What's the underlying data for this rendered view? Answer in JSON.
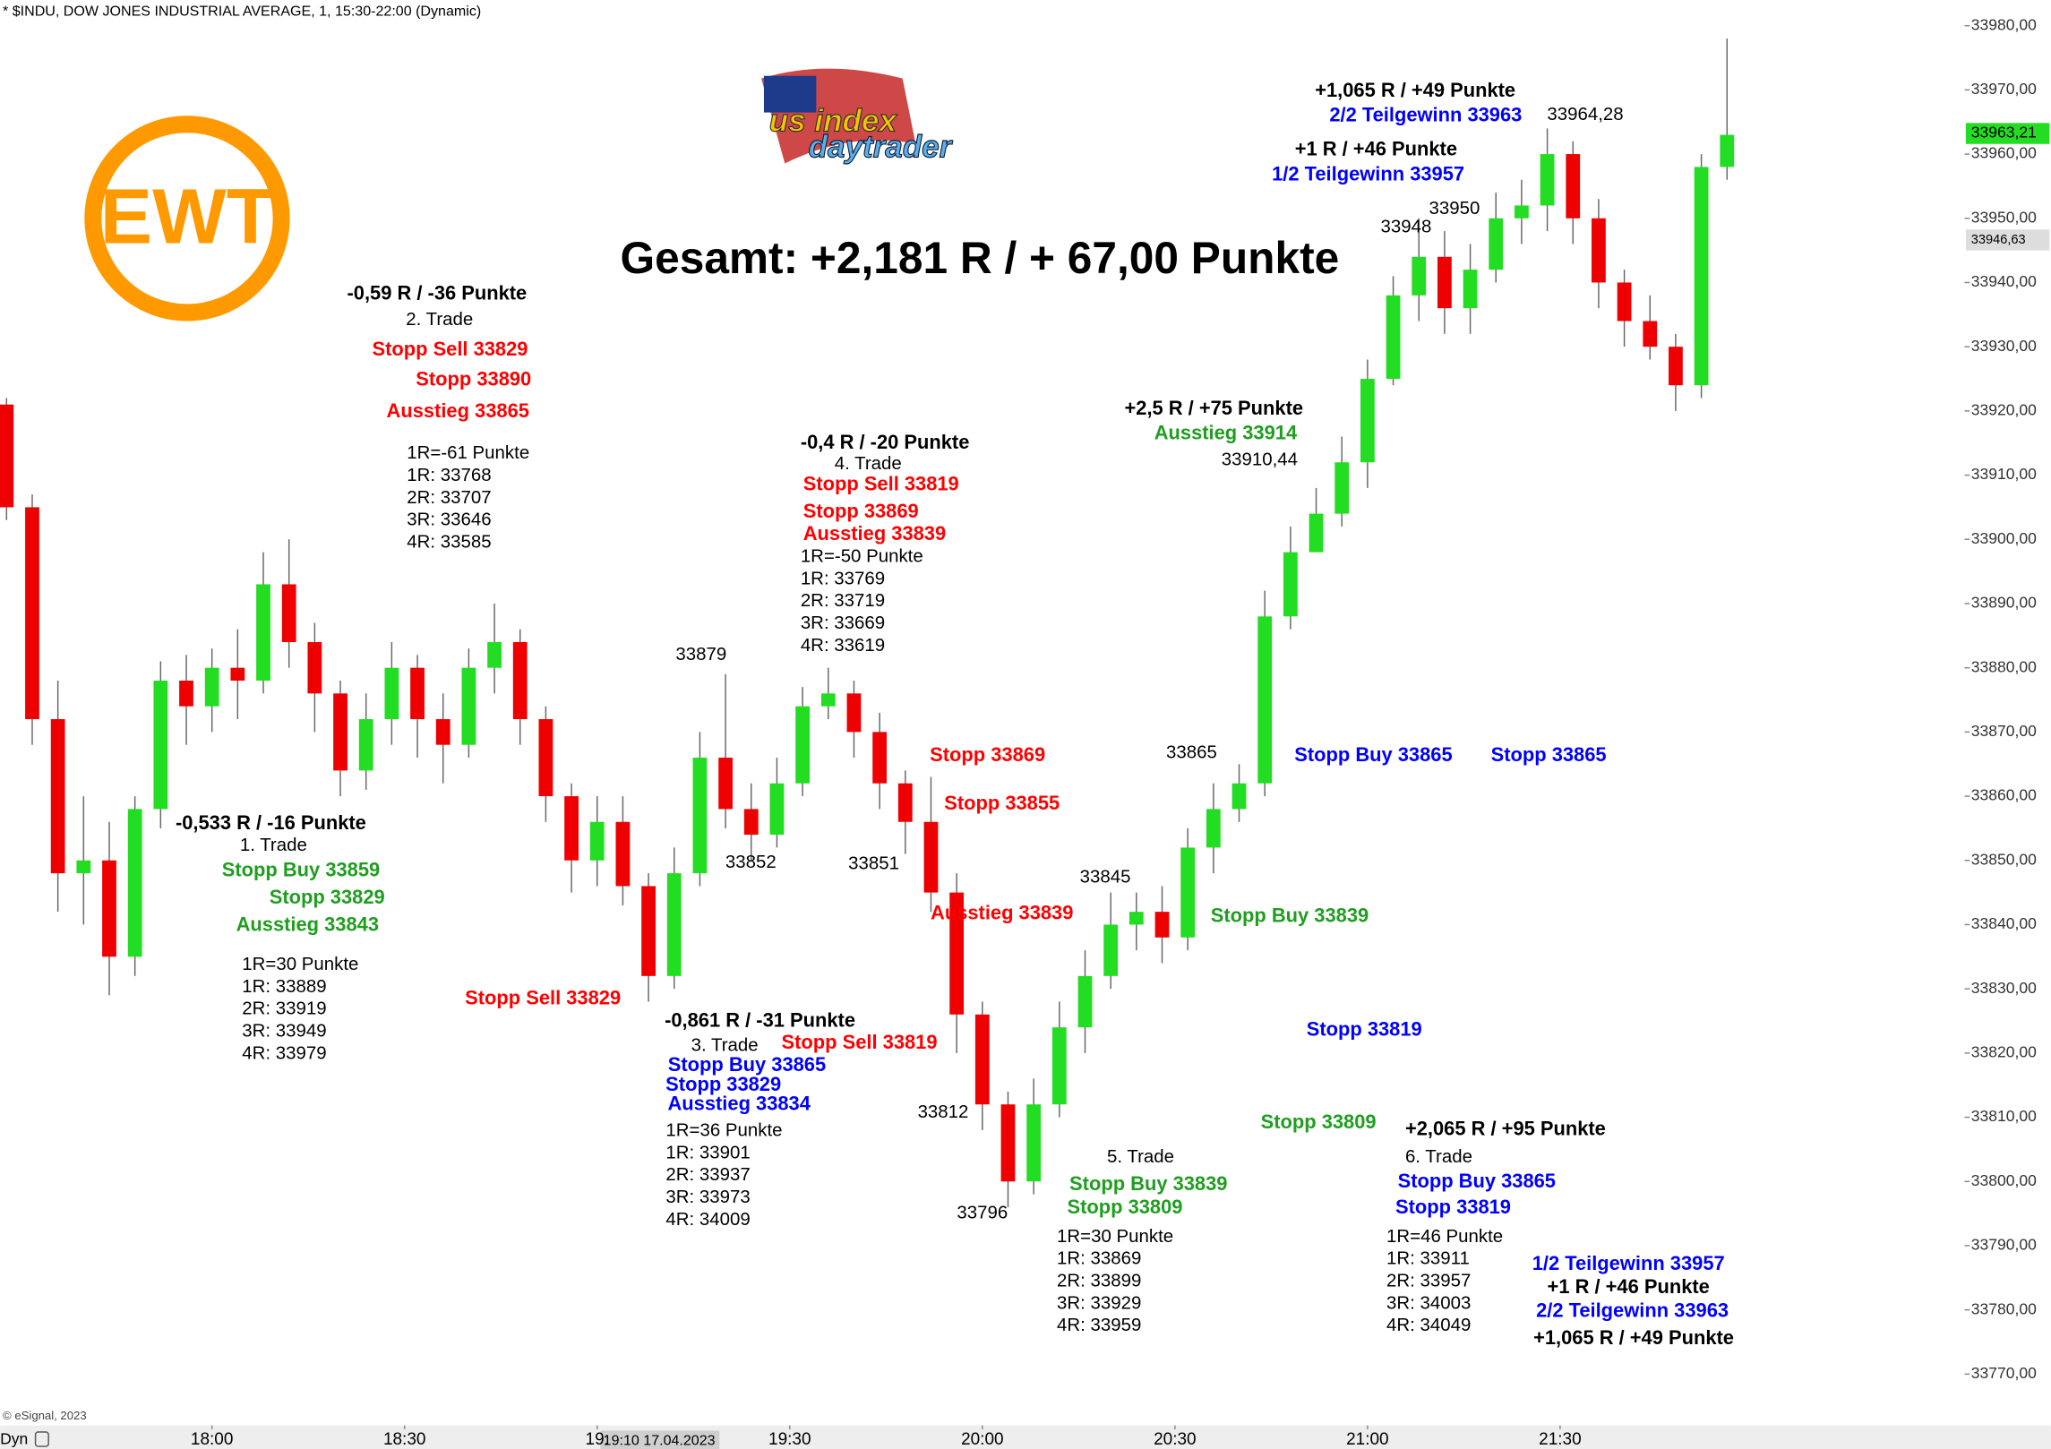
{
  "chart_data": {
    "type": "candlestick",
    "header": "* $INDU, DOW JONES INDUSTRIAL AVERAGE, 1, 15:30-22:00 (Dynamic)",
    "title": "Gesamt: +2,181 R / + 67,00 Punkte",
    "logo_text": "EWT",
    "brand_text_1": "us index",
    "brand_text_2": "daytrader",
    "copyright": "© eSignal, 2023",
    "mode_label": "Dyn",
    "cursor_label": "19:10 17.04.2023",
    "up_color": "#22dd22",
    "down_color": "#ee0000",
    "x": [
      "17:28",
      "17:32",
      "17:36",
      "17:40",
      "17:44",
      "17:48",
      "17:52",
      "17:56",
      "18:00",
      "18:04",
      "18:08",
      "18:12",
      "18:16",
      "18:20",
      "18:24",
      "18:28",
      "18:32",
      "18:36",
      "18:40",
      "18:44",
      "18:48",
      "18:52",
      "18:56",
      "19:00",
      "19:04",
      "19:08",
      "19:12",
      "19:16",
      "19:20",
      "19:24",
      "19:28",
      "19:32",
      "19:36",
      "19:40",
      "19:44",
      "19:48",
      "19:52",
      "19:56",
      "20:00",
      "20:04",
      "20:08",
      "20:12",
      "20:16",
      "20:20",
      "20:24",
      "20:28",
      "20:32",
      "20:36",
      "20:40",
      "20:44",
      "20:48",
      "20:52",
      "20:56",
      "21:00",
      "21:04",
      "21:08",
      "21:12",
      "21:16",
      "21:20",
      "21:24",
      "21:28",
      "21:32",
      "21:36",
      "21:40",
      "21:44",
      "21:48",
      "21:52",
      "21:56"
    ],
    "open": [
      33921,
      33905,
      33872,
      33848,
      33850,
      33835,
      33858,
      33878,
      33874,
      33880,
      33878,
      33893,
      33884,
      33876,
      33864,
      33872,
      33880,
      33872,
      33868,
      33880,
      33884,
      33872,
      33860,
      33850,
      33856,
      33846,
      33832,
      33848,
      33866,
      33858,
      33854,
      33862,
      33874,
      33876,
      33870,
      33862,
      33856,
      33845,
      33826,
      33812,
      33800,
      33812,
      33824,
      33832,
      33840,
      33842,
      33838,
      33852,
      33858,
      33862,
      33888,
      33898,
      33904,
      33912,
      33925,
      33938,
      33944,
      33936,
      33942,
      33950,
      33952,
      33960,
      33950,
      33940,
      33934,
      33930,
      33924,
      33958
    ],
    "high": [
      33922,
      33907,
      33878,
      33860,
      33856,
      33860,
      33881,
      33882,
      33883,
      33886,
      33898,
      33900,
      33887,
      33878,
      33876,
      33884,
      33882,
      33876,
      33883,
      33890,
      33886,
      33874,
      33862,
      33860,
      33860,
      33848,
      33852,
      33870,
      33879,
      33862,
      33866,
      33877,
      33880,
      33878,
      33873,
      33864,
      33863,
      33848,
      33828,
      33814,
      33816,
      33828,
      33836,
      33845,
      33845,
      33846,
      33855,
      33862,
      33865,
      33892,
      33902,
      33908,
      33916,
      33928,
      33941,
      33950,
      33948,
      33946,
      33954,
      33956,
      33964,
      33962,
      33953,
      33942,
      33938,
      33932,
      33960,
      33978
    ],
    "low": [
      33903,
      33868,
      33842,
      33840,
      33829,
      33832,
      33855,
      33868,
      33870,
      33872,
      33876,
      33880,
      33870,
      33860,
      33861,
      33868,
      33866,
      33862,
      33866,
      33876,
      33868,
      33856,
      33845,
      33846,
      33843,
      33828,
      33830,
      33846,
      33855,
      33850,
      33852,
      33860,
      33872,
      33866,
      33858,
      33851,
      33842,
      33820,
      33808,
      33796,
      33798,
      33810,
      33820,
      33830,
      33836,
      33834,
      33836,
      33848,
      33856,
      33860,
      33886,
      33898,
      33902,
      33908,
      33924,
      33934,
      33932,
      33932,
      33940,
      33946,
      33948,
      33946,
      33936,
      33930,
      33928,
      33920,
      33922,
      33956
    ],
    "close": [
      33905,
      33872,
      33848,
      33850,
      33835,
      33858,
      33878,
      33874,
      33880,
      33878,
      33893,
      33884,
      33876,
      33864,
      33872,
      33880,
      33872,
      33868,
      33880,
      33884,
      33872,
      33860,
      33850,
      33856,
      33846,
      33832,
      33848,
      33866,
      33858,
      33854,
      33862,
      33874,
      33876,
      33870,
      33862,
      33856,
      33845,
      33826,
      33812,
      33800,
      33812,
      33824,
      33832,
      33840,
      33842,
      33838,
      33852,
      33858,
      33862,
      33888,
      33898,
      33904,
      33912,
      33925,
      33938,
      33944,
      33936,
      33942,
      33950,
      33952,
      33960,
      33950,
      33940,
      33934,
      33930,
      33924,
      33958,
      33963
    ],
    "xlim": [
      "17:27",
      "22:33"
    ],
    "xticks": [
      "18:00",
      "18:30",
      {
        "value": "19:00",
        "label": "19:"
      },
      "19:30",
      "20:00",
      "20:30",
      "21:00",
      "21:30"
    ],
    "ylim": [
      33762,
      33984
    ],
    "yticks": [
      {
        "value": 33980,
        "label": "33980,00"
      },
      {
        "value": 33970,
        "label": "33970,00"
      },
      {
        "value": 33960,
        "label": "33960,00"
      },
      {
        "value": 33950,
        "label": "33950,00"
      },
      {
        "value": 33940,
        "label": "33940,00"
      },
      {
        "value": 33930,
        "label": "33930,00"
      },
      {
        "value": 33920,
        "label": "33920,00"
      },
      {
        "value": 33910,
        "label": "33910,00"
      },
      {
        "value": 33900,
        "label": "33900,00"
      },
      {
        "value": 33890,
        "label": "33890,00"
      },
      {
        "value": 33880,
        "label": "33880,00"
      },
      {
        "value": 33870,
        "label": "33870,00"
      },
      {
        "value": 33860,
        "label": "33860,00"
      },
      {
        "value": 33850,
        "label": "33850,00"
      },
      {
        "value": 33840,
        "label": "33840,00"
      },
      {
        "value": 33830,
        "label": "33830,00"
      },
      {
        "value": 33820,
        "label": "33820,00"
      },
      {
        "value": 33810,
        "label": "33810,00"
      },
      {
        "value": 33800,
        "label": "33800,00"
      },
      {
        "value": 33790,
        "label": "33790,00"
      },
      {
        "value": 33780,
        "label": "33780,00"
      },
      {
        "value": 33770,
        "label": "33770,00"
      }
    ],
    "price_markers": [
      {
        "value": 33963.21,
        "label": "33963,21",
        "color": "#22dd22"
      },
      {
        "value": 33946.63,
        "label": "33946,63",
        "color": "#dddddd"
      }
    ],
    "annotations": [
      {
        "text": "-0,59 R / -36 Punkte",
        "color": "#000000"
      },
      {
        "text": "2. Trade",
        "color": "#000000"
      },
      {
        "text": "Stopp Sell 33829",
        "color": "#ff0000"
      },
      {
        "text": "Stopp 33890",
        "color": "#ff0000"
      },
      {
        "text": "Ausstieg 33865",
        "color": "#ff0000"
      },
      {
        "text": "1R=-61 Punkte",
        "color": "#000000"
      },
      {
        "text": "1R: 33768",
        "color": "#000000"
      },
      {
        "text": "2R: 33707",
        "color": "#000000"
      },
      {
        "text": "3R: 33646",
        "color": "#000000"
      },
      {
        "text": "4R: 33585",
        "color": "#000000"
      },
      {
        "text": "-0,533 R / -16 Punkte",
        "color": "#000000"
      },
      {
        "text": "1. Trade",
        "color": "#000000"
      },
      {
        "text": "Stopp Buy 33859",
        "color": "#1f9e1f"
      },
      {
        "text": "Stopp 33829",
        "color": "#1f9e1f"
      },
      {
        "text": "Ausstieg 33843",
        "color": "#1f9e1f"
      },
      {
        "text": "1R=30 Punkte",
        "color": "#000000"
      },
      {
        "text": "1R: 33889",
        "color": "#000000"
      },
      {
        "text": "2R: 33919",
        "color": "#000000"
      },
      {
        "text": "3R: 33949",
        "color": "#000000"
      },
      {
        "text": "4R: 33979",
        "color": "#000000"
      },
      {
        "text": "Stopp Sell 33829",
        "color": "#ff0000"
      },
      {
        "text": "-0,861 R / -31 Punkte",
        "color": "#000000"
      },
      {
        "text": "3. Trade",
        "color": "#000000"
      },
      {
        "text": "Stopp Sell 33819",
        "color": "#ff0000"
      },
      {
        "text": "Stopp Buy 33865",
        "color": "#0000ff"
      },
      {
        "text": "Stopp 33829",
        "color": "#0000ff"
      },
      {
        "text": "Ausstieg 33834",
        "color": "#0000ff"
      },
      {
        "text": "1R=36 Punkte",
        "color": "#000000"
      },
      {
        "text": "1R: 33901",
        "color": "#000000"
      },
      {
        "text": "2R: 33937",
        "color": "#000000"
      },
      {
        "text": "3R: 33973",
        "color": "#000000"
      },
      {
        "text": "4R: 34009",
        "color": "#000000"
      },
      {
        "text": "33879",
        "color": "#000000"
      },
      {
        "text": "33852",
        "color": "#000000"
      },
      {
        "text": "33851",
        "color": "#000000"
      },
      {
        "text": "-0,4 R / -20 Punkte",
        "color": "#000000"
      },
      {
        "text": "4. Trade",
        "color": "#000000"
      },
      {
        "text": "Stopp Sell 33819",
        "color": "#ff0000"
      },
      {
        "text": "Stopp 33869",
        "color": "#ff0000"
      },
      {
        "text": "Ausstieg 33839",
        "color": "#ff0000"
      },
      {
        "text": "1R=-50 Punkte",
        "color": "#000000"
      },
      {
        "text": "1R: 33769",
        "color": "#000000"
      },
      {
        "text": "2R: 33719",
        "color": "#000000"
      },
      {
        "text": "3R: 33669",
        "color": "#000000"
      },
      {
        "text": "4R: 33619",
        "color": "#000000"
      },
      {
        "text": "Stopp 33869",
        "color": "#ff0000"
      },
      {
        "text": "Stopp 33855",
        "color": "#ff0000"
      },
      {
        "text": "Ausstieg 33839",
        "color": "#ff0000"
      },
      {
        "text": "33812",
        "color": "#000000"
      },
      {
        "text": "33796",
        "color": "#000000"
      },
      {
        "text": "33845",
        "color": "#000000"
      },
      {
        "text": "33865",
        "color": "#000000"
      },
      {
        "text": "Stopp Buy 33839",
        "color": "#1f9e1f"
      },
      {
        "text": "Stopp 33819",
        "color": "#0000ff"
      },
      {
        "text": "Stopp 33809",
        "color": "#1f9e1f"
      },
      {
        "text": "5. Trade",
        "color": "#000000"
      },
      {
        "text": "Stopp Buy 33839",
        "color": "#1f9e1f"
      },
      {
        "text": "Stopp 33809",
        "color": "#1f9e1f"
      },
      {
        "text": "1R=30 Punkte",
        "color": "#000000"
      },
      {
        "text": "1R: 33869",
        "color": "#000000"
      },
      {
        "text": "2R: 33899",
        "color": "#000000"
      },
      {
        "text": "3R: 33929",
        "color": "#000000"
      },
      {
        "text": "4R: 33959",
        "color": "#000000"
      },
      {
        "text": "+2,5 R / +75 Punkte",
        "color": "#000000"
      },
      {
        "text": "Ausstieg 33914",
        "color": "#1f9e1f"
      },
      {
        "text": "33910,44",
        "color": "#000000"
      },
      {
        "text": "Stopp Buy 33865",
        "color": "#0000ff"
      },
      {
        "text": "Stopp 33865",
        "color": "#0000ff"
      },
      {
        "text": "+2,065 R / +95 Punkte",
        "color": "#000000"
      },
      {
        "text": "6. Trade",
        "color": "#000000"
      },
      {
        "text": "Stopp Buy 33865",
        "color": "#0000ff"
      },
      {
        "text": "Stopp 33819",
        "color": "#0000ff"
      },
      {
        "text": "1R=46 Punkte",
        "color": "#000000"
      },
      {
        "text": "1R: 33911",
        "color": "#000000"
      },
      {
        "text": "2R: 33957",
        "color": "#000000"
      },
      {
        "text": "3R: 34003",
        "color": "#000000"
      },
      {
        "text": "4R: 34049",
        "color": "#000000"
      },
      {
        "text": "1/2 Teilgewinn 33957",
        "color": "#0000ff"
      },
      {
        "text": "+1 R / +46 Punkte",
        "color": "#000000"
      },
      {
        "text": "2/2 Teilgewinn 33963",
        "color": "#0000ff"
      },
      {
        "text": "+1,065 R / +49 Punkte",
        "color": "#000000"
      },
      {
        "text": "+1,065 R / +49 Punkte",
        "color": "#000000"
      },
      {
        "text": "2/2 Teilgewinn 33963",
        "color": "#0000ff"
      },
      {
        "text": "33964,28",
        "color": "#000000"
      },
      {
        "text": "+1 R / +46 Punkte",
        "color": "#000000"
      },
      {
        "text": "1/2 Teilgewinn 33957",
        "color": "#0000ff"
      },
      {
        "text": "33950",
        "color": "#000000"
      },
      {
        "text": "33948",
        "color": "#000000"
      }
    ]
  }
}
